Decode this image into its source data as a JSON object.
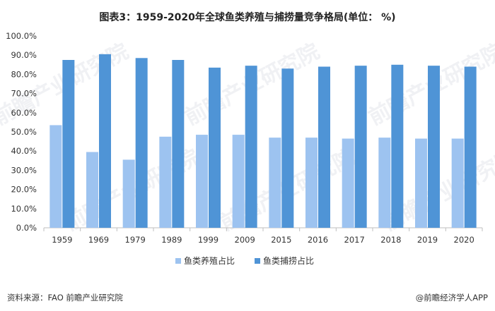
{
  "title": "图表3：1959-2020年全球鱼类养殖与捕捞量竞争格局(单位：  %)",
  "source": "资料来源：FAO 前瞻产业研究院",
  "brand": "@前瞻经济学人APP",
  "watermark": "前瞻产业研究院",
  "colors": {
    "aquaculture": "#9dc3f0",
    "capture": "#4f94d6",
    "axis": "#bfbfbf"
  },
  "chart_data": {
    "type": "bar",
    "categories": [
      "1959",
      "1969",
      "1979",
      "1989",
      "1999",
      "2009",
      "2015",
      "2016",
      "2017",
      "2018",
      "2019",
      "2020"
    ],
    "series": [
      {
        "name": "鱼类养殖占比",
        "values": [
          53.5,
          39.5,
          35.5,
          47.5,
          48.5,
          48.5,
          47.0,
          47.0,
          46.5,
          47.0,
          46.5,
          46.5
        ]
      },
      {
        "name": "鱼类捕捞占比",
        "values": [
          87.5,
          90.5,
          88.5,
          87.5,
          83.5,
          84.5,
          83.0,
          84.0,
          84.5,
          85.0,
          84.5,
          84.0
        ]
      }
    ],
    "ylim": [
      0,
      100
    ],
    "yticks": [
      "0.0%",
      "10.0%",
      "20.0%",
      "30.0%",
      "40.0%",
      "50.0%",
      "60.0%",
      "70.0%",
      "80.0%",
      "90.0%",
      "100.0%"
    ],
    "grid": false,
    "legend": "bottom"
  }
}
